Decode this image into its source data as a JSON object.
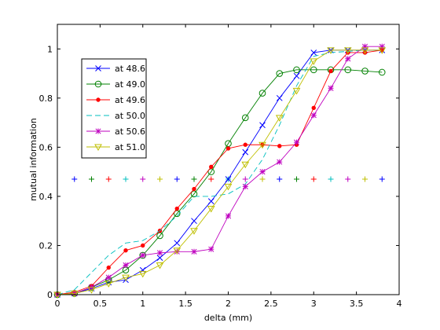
{
  "chart_data": {
    "type": "line",
    "title": "",
    "xlabel": "delta (mm)",
    "ylabel": "mutual information",
    "xlim": [
      0,
      4
    ],
    "ylim": [
      0,
      1.1
    ],
    "xticks": [
      0,
      0.5,
      1,
      1.5,
      2,
      2.5,
      3,
      3.5,
      4
    ],
    "xtick_labels": [
      "0",
      "0.5",
      "1",
      "1.5",
      "2",
      "2.5",
      "3",
      "3.5",
      "4"
    ],
    "yticks": [
      0,
      0.2,
      0.4,
      0.6,
      0.8,
      1
    ],
    "ytick_labels": [
      "0",
      "0.2",
      "0.4",
      "0.6",
      "0.8",
      "1"
    ],
    "grid": false,
    "legend_position": "top-left",
    "x": [
      0,
      0.2,
      0.4,
      0.6,
      0.8,
      1.0,
      1.2,
      1.4,
      1.6,
      1.8,
      2.0,
      2.2,
      2.4,
      2.6,
      2.8,
      3.0,
      3.2,
      3.4,
      3.6,
      3.8
    ],
    "series": [
      {
        "name": "at 48.6",
        "color": "#0000ff",
        "marker": "x",
        "dash": "solid",
        "values": [
          0,
          0.005,
          0.025,
          0.05,
          0.06,
          0.1,
          0.15,
          0.21,
          0.3,
          0.38,
          0.47,
          0.58,
          0.69,
          0.8,
          0.89,
          0.985,
          0.995,
          0.995,
          0.995,
          0.995
        ]
      },
      {
        "name": "at 49.0",
        "color": "#008000",
        "marker": "o",
        "dash": "solid",
        "values": [
          0,
          0.005,
          0.03,
          0.06,
          0.1,
          0.16,
          0.24,
          0.33,
          0.41,
          0.5,
          0.615,
          0.72,
          0.82,
          0.9,
          0.915,
          0.915,
          0.915,
          0.915,
          0.91,
          0.905
        ]
      },
      {
        "name": "at 49.6",
        "color": "#ff0000",
        "marker": "dot",
        "dash": "solid",
        "values": [
          0,
          0.01,
          0.035,
          0.11,
          0.18,
          0.2,
          0.26,
          0.35,
          0.43,
          0.52,
          0.595,
          0.61,
          0.61,
          0.605,
          0.61,
          0.76,
          0.91,
          0.985,
          0.985,
          0.995
        ]
      },
      {
        "name": "at 50.0",
        "color": "#00bfbf",
        "marker": "none",
        "dash": "dashed",
        "values": [
          0,
          0.02,
          0.09,
          0.16,
          0.21,
          0.22,
          0.26,
          0.32,
          0.4,
          0.4,
          0.41,
          0.45,
          0.55,
          0.69,
          0.85,
          0.97,
          0.985,
          0.99,
          0.995,
          0.995
        ]
      },
      {
        "name": "at 50.6",
        "color": "#bf00bf",
        "marker": "*",
        "dash": "solid",
        "values": [
          0,
          0.005,
          0.03,
          0.07,
          0.12,
          0.16,
          0.17,
          0.175,
          0.175,
          0.185,
          0.32,
          0.44,
          0.5,
          0.54,
          0.62,
          0.73,
          0.84,
          0.96,
          1.01,
          1.01
        ]
      },
      {
        "name": "at 51.0",
        "color": "#bfbf00",
        "marker": "v",
        "dash": "solid",
        "values": [
          0,
          0.005,
          0.02,
          0.045,
          0.07,
          0.085,
          0.12,
          0.18,
          0.26,
          0.35,
          0.44,
          0.53,
          0.61,
          0.72,
          0.83,
          0.95,
          0.995,
          0.995,
          0.995,
          0.995
        ]
      }
    ],
    "threshold_markers": {
      "y": 0.47,
      "x": [
        0.2,
        0.4,
        0.6,
        0.8,
        1.0,
        1.2,
        1.4,
        1.6,
        1.8,
        2.0,
        2.2,
        2.4,
        2.6,
        2.8,
        3.0,
        3.2,
        3.4,
        3.6,
        3.8
      ],
      "colors": [
        "#0000ff",
        "#008000",
        "#ff0000",
        "#00bfbf",
        "#bf00bf",
        "#bfbf00"
      ]
    }
  }
}
